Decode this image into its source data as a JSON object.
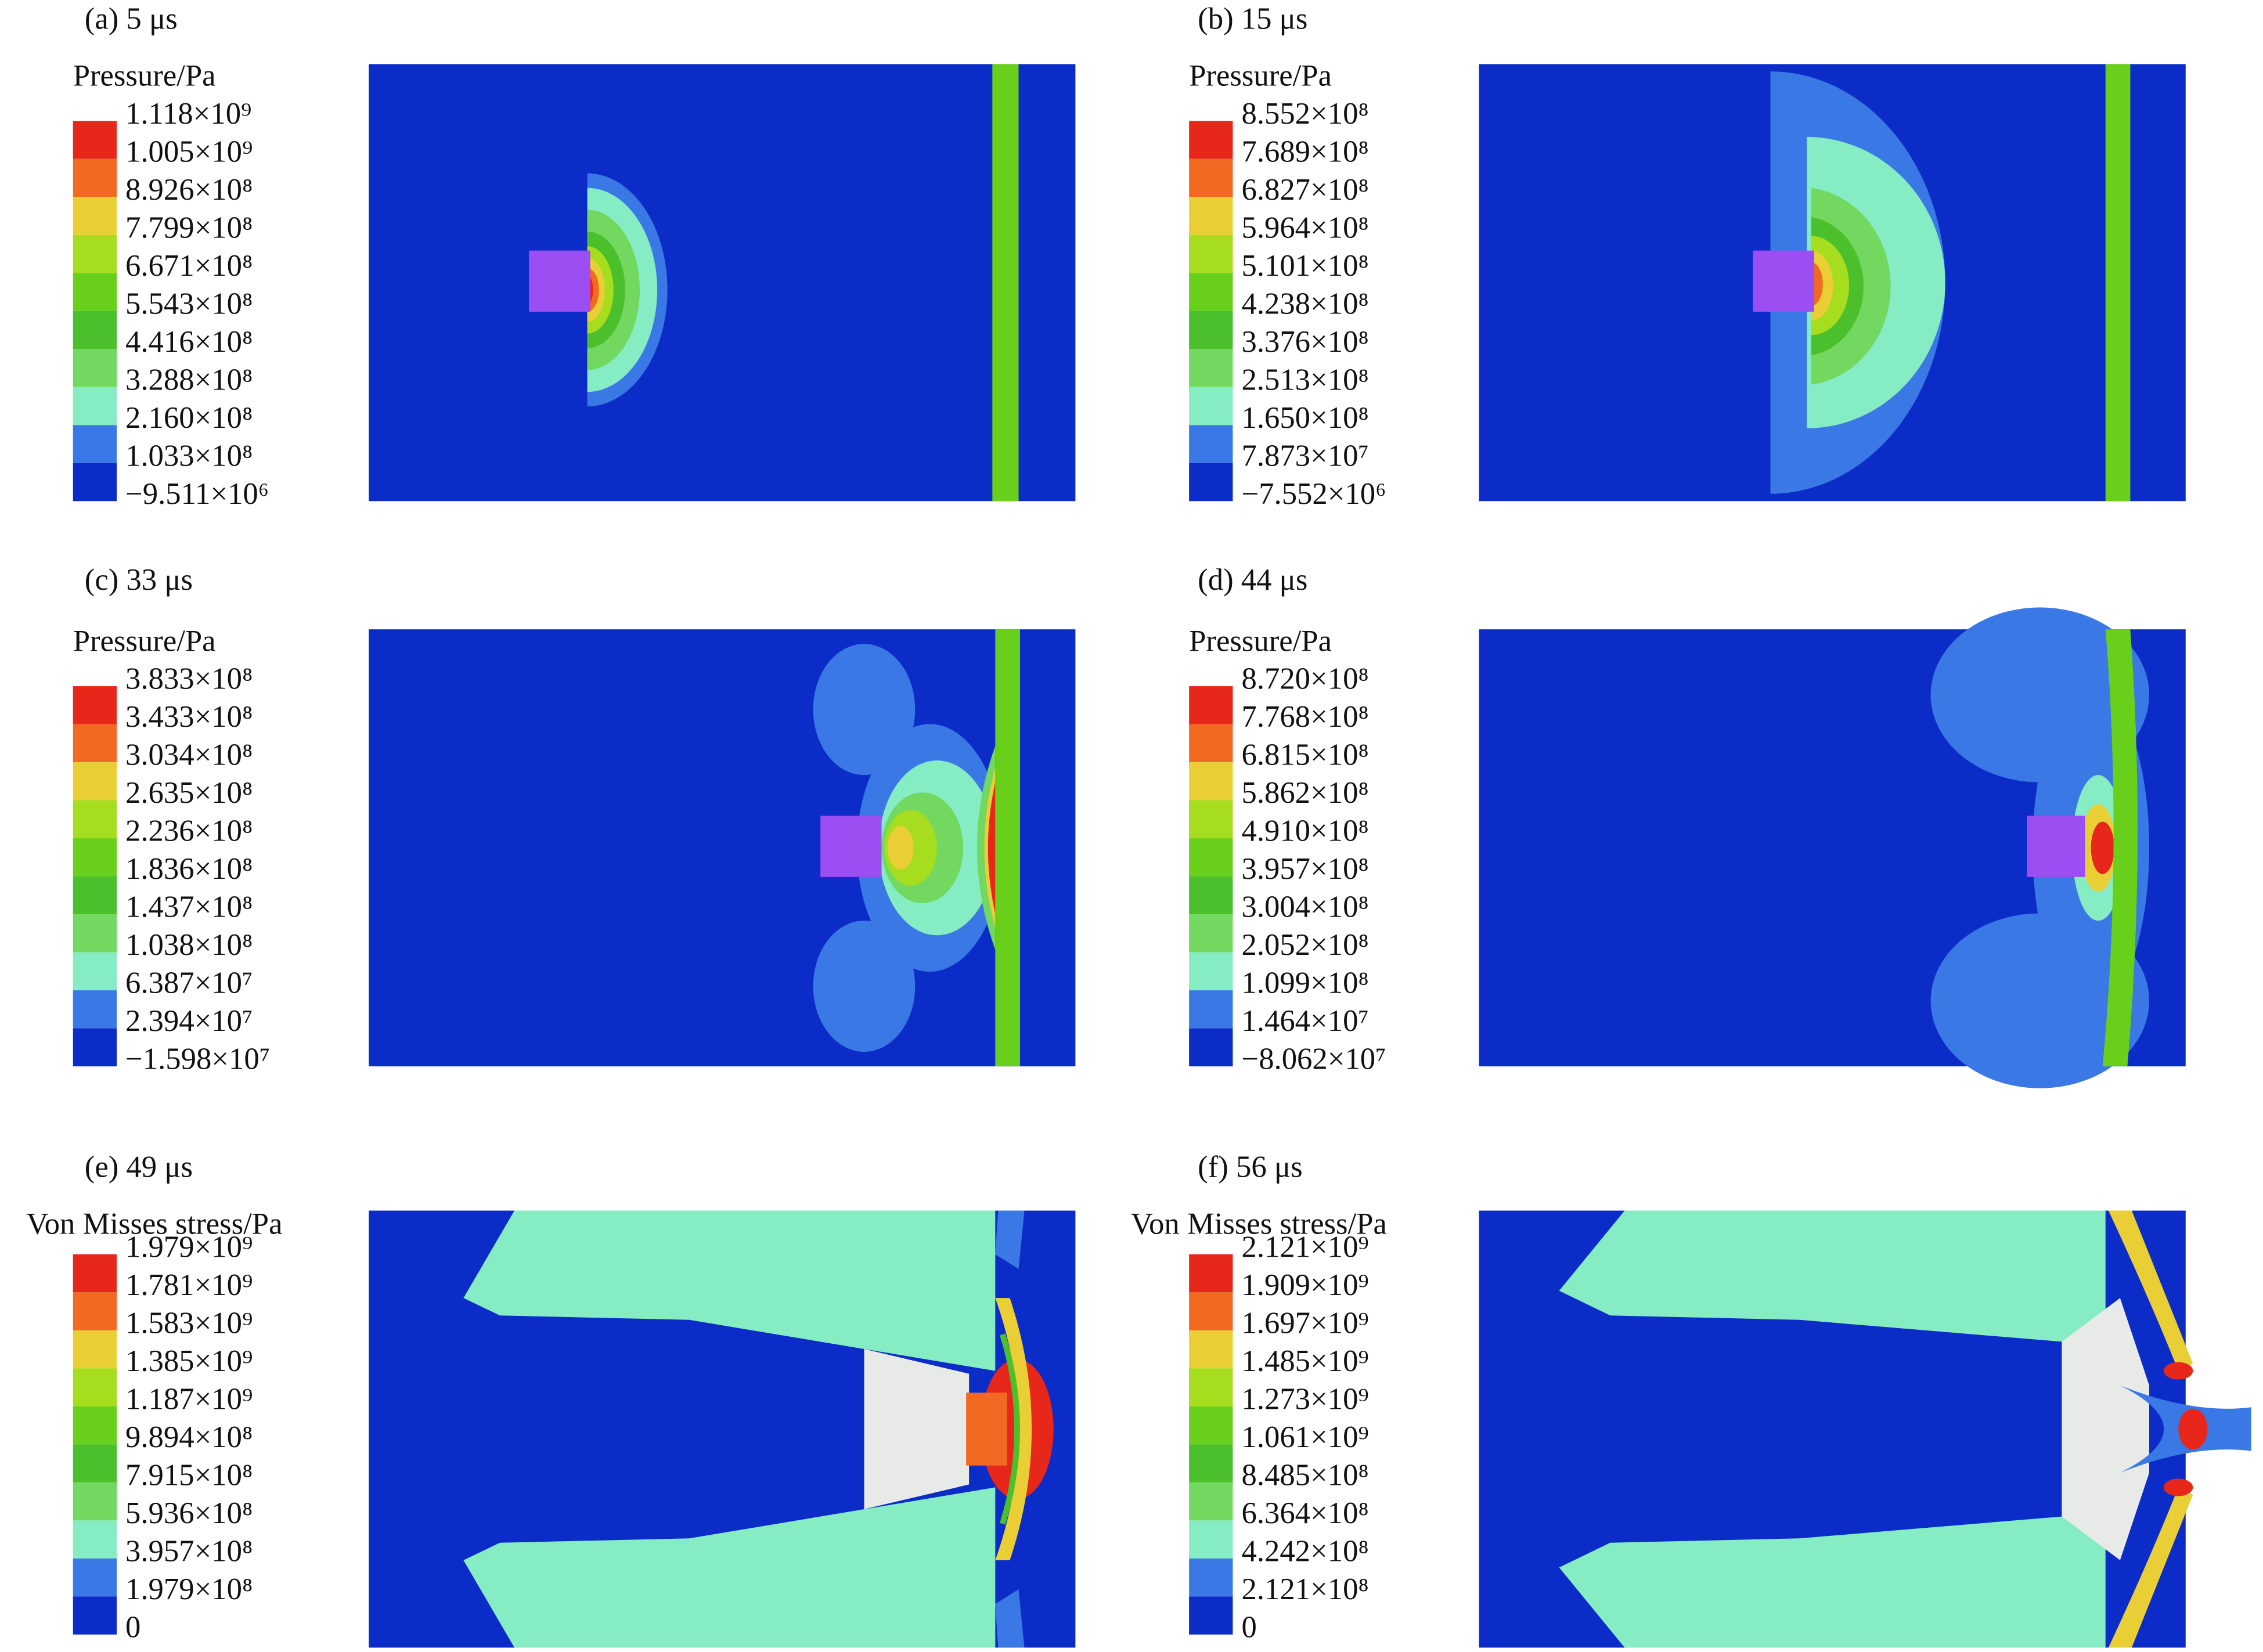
{
  "panels": [
    {
      "label": "(a) 5 μs",
      "legend_title": "Pressure/Pa",
      "legend_labels": [
        "1.118×10⁹",
        "1.005×10⁹",
        "8.926×10⁸",
        "7.799×10⁸",
        "6.671×10⁸",
        "5.543×10⁸",
        "4.416×10⁸",
        "3.288×10⁸",
        "2.160×10⁸",
        "1.033×10⁸",
        "−9.511×10⁶"
      ]
    },
    {
      "label": "(b) 15 μs",
      "legend_title": "Pressure/Pa",
      "legend_labels": [
        "8.552×10⁸",
        "7.689×10⁸",
        "6.827×10⁸",
        "5.964×10⁸",
        "5.101×10⁸",
        "4.238×10⁸",
        "3.376×10⁸",
        "2.513×10⁸",
        "1.650×10⁸",
        "7.873×10⁷",
        "−7.552×10⁶"
      ]
    },
    {
      "label": "(c) 33 μs",
      "legend_title": "Pressure/Pa",
      "legend_labels": [
        "3.833×10⁸",
        "3.433×10⁸",
        "3.034×10⁸",
        "2.635×10⁸",
        "2.236×10⁸",
        "1.836×10⁸",
        "1.437×10⁸",
        "1.038×10⁸",
        "6.387×10⁷",
        "2.394×10⁷",
        "−1.598×10⁷"
      ]
    },
    {
      "label": "(d) 44 μs",
      "legend_title": "Pressure/Pa",
      "legend_labels": [
        "8.720×10⁸",
        "7.768×10⁸",
        "6.815×10⁸",
        "5.862×10⁸",
        "4.910×10⁸",
        "3.957×10⁸",
        "3.004×10⁸",
        "2.052×10⁸",
        "1.099×10⁸",
        "1.464×10⁷",
        "−8.062×10⁷"
      ]
    },
    {
      "label": "(e) 49 μs",
      "legend_title": "Von Misses stress/Pa",
      "legend_labels": [
        "1.979×10⁹",
        "1.781×10⁹",
        "1.583×10⁹",
        "1.385×10⁹",
        "1.187×10⁹",
        "9.894×10⁸",
        "7.915×10⁸",
        "5.936×10⁸",
        "3.957×10⁸",
        "1.979×10⁸",
        "0"
      ]
    },
    {
      "label": "(f) 56 μs",
      "legend_title": "Von Misses stress/Pa",
      "legend_labels": [
        "2.121×10⁹",
        "1.909×10⁹",
        "1.697×10⁹",
        "1.485×10⁹",
        "1.273×10⁹",
        "1.061×10⁹",
        "8.485×10⁸",
        "6.364×10⁸",
        "4.242×10⁸",
        "2.121×10⁸",
        "0"
      ]
    }
  ]
}
